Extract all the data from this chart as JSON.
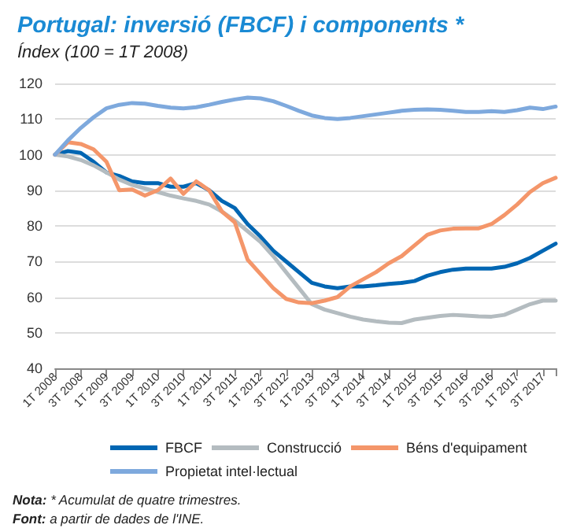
{
  "chart_data": {
    "type": "line",
    "title": "Portugal: inversió (FBCF) i components *",
    "subtitle": "Índex (100 = 1T 2008)",
    "categories": [
      "1T 2008",
      null,
      "3T 2008",
      null,
      "1T 2009",
      null,
      "3T 2009",
      null,
      "1T 2010",
      null,
      "3T 2010",
      null,
      "1T 2011",
      null,
      "3T 2011",
      null,
      "1T 2012",
      null,
      "3T 2012",
      null,
      "1T 2013",
      null,
      "3T 2013",
      null,
      "1T 2014",
      null,
      "3T 2014",
      null,
      "1T 2015",
      null,
      "3T 2015",
      null,
      "1T 2016",
      null,
      "3T 2016",
      null,
      "1T 2017",
      null,
      "3T 2017",
      null
    ],
    "series": [
      {
        "name": "FBCF",
        "color": "#0066b3",
        "values": [
          100,
          101,
          100.5,
          98,
          95,
          94,
          92.5,
          92,
          92,
          91,
          91,
          92,
          90,
          87,
          85,
          80.5,
          77,
          73,
          70,
          67,
          64,
          63,
          62.5,
          63,
          63,
          63.3,
          63.7,
          64,
          64.5,
          66,
          67,
          67.7,
          68,
          68,
          68,
          68.5,
          69.5,
          71,
          73,
          75
        ]
      },
      {
        "name": "Construcció",
        "color": "#b4bcc0",
        "values": [
          100,
          99.5,
          98.5,
          97,
          95,
          93,
          91.5,
          90.5,
          89.5,
          88.5,
          87.7,
          87,
          86,
          84,
          81.5,
          78.5,
          75.5,
          71.5,
          67,
          62.5,
          58,
          56.5,
          55.5,
          54.5,
          53.7,
          53.2,
          52.8,
          52.7,
          53.7,
          54.2,
          54.7,
          55,
          54.8,
          54.6,
          54.5,
          55,
          56.5,
          58,
          59,
          59
        ]
      },
      {
        "name": "Béns d'equipament",
        "color": "#f4966a",
        "values": [
          100,
          103.5,
          103,
          101.5,
          98,
          90,
          90.2,
          88.5,
          90,
          93.3,
          89,
          92.5,
          90,
          84,
          81,
          70.5,
          66.5,
          62.5,
          59.5,
          58.5,
          58.3,
          59,
          60,
          63,
          65,
          67,
          69.5,
          71.5,
          74.5,
          77.5,
          78.7,
          79.2,
          79.3,
          79.3,
          80.5,
          83,
          86,
          89.5,
          92,
          93.5
        ]
      },
      {
        "name": "Propietat intel·lectual",
        "color": "#7ea9dd",
        "values": [
          100,
          104,
          107.5,
          110.5,
          113,
          114,
          114.5,
          114.3,
          113.7,
          113.2,
          113,
          113.3,
          114,
          114.8,
          115.5,
          116,
          115.8,
          115,
          113.7,
          112.3,
          111,
          110.3,
          110,
          110.3,
          110.8,
          111.3,
          111.8,
          112.3,
          112.6,
          112.7,
          112.6,
          112.3,
          112,
          112,
          112.2,
          112,
          112.5,
          113.2,
          112.8,
          113.5
        ]
      }
    ],
    "ylim": [
      40,
      120
    ],
    "yticks": [
      40,
      50,
      60,
      70,
      80,
      90,
      100,
      110,
      120
    ],
    "grid": "y",
    "legend": "bottom",
    "marker": "none",
    "line_style": "solid",
    "annotations": [
      "Nota: * Acumulat de quatre trimestres.",
      "Font: a partir de dades de l'INE."
    ]
  }
}
